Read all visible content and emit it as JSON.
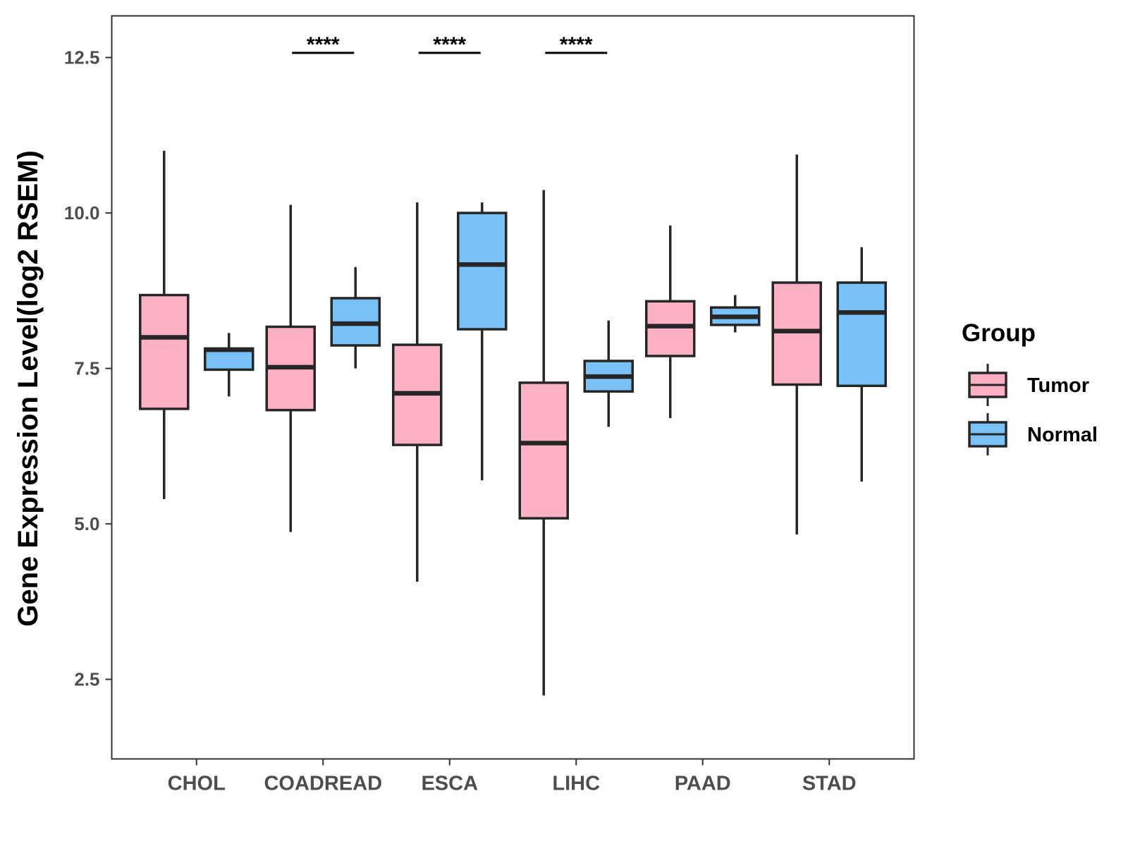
{
  "chart_data": {
    "type": "box",
    "title": "",
    "xlabel": "",
    "ylabel": "Gene Expression Level(log2 RSEM)",
    "ylim": [
      1.22,
      13.17
    ],
    "yticks": [
      2.5,
      5.0,
      7.5,
      10.0,
      12.5
    ],
    "ytick_labels": [
      "2.5",
      "5.0",
      "7.5",
      "10.0",
      "12.5"
    ],
    "grid": false,
    "legend": {
      "title": "Group",
      "position": "right",
      "entries": [
        "Tumor",
        "Normal"
      ]
    },
    "categories": [
      "CHOL",
      "COADREAD",
      "ESCA",
      "LIHC",
      "PAAD",
      "STAD"
    ],
    "series": [
      {
        "name": "Tumor",
        "color": "#FBB1C3",
        "boxes": [
          {
            "min": 5.4,
            "q1": 6.85,
            "median": 8.0,
            "q3": 8.68,
            "max": 11.0
          },
          {
            "min": 4.87,
            "q1": 6.83,
            "median": 7.52,
            "q3": 8.17,
            "max": 10.13
          },
          {
            "min": 4.07,
            "q1": 6.27,
            "median": 7.1,
            "q3": 7.88,
            "max": 10.17
          },
          {
            "min": 2.24,
            "q1": 5.09,
            "median": 6.3,
            "q3": 7.27,
            "max": 10.37
          },
          {
            "min": 6.7,
            "q1": 7.7,
            "median": 8.18,
            "q3": 8.58,
            "max": 9.8
          },
          {
            "min": 4.83,
            "q1": 7.24,
            "median": 8.1,
            "q3": 8.88,
            "max": 10.94
          }
        ]
      },
      {
        "name": "Normal",
        "color": "#78C2F8",
        "boxes": [
          {
            "min": 7.05,
            "q1": 7.48,
            "median": 7.8,
            "q3": 7.82,
            "max": 8.07
          },
          {
            "min": 7.5,
            "q1": 7.87,
            "median": 8.22,
            "q3": 8.63,
            "max": 9.13
          },
          {
            "min": 5.7,
            "q1": 8.13,
            "median": 9.17,
            "q3": 10.0,
            "max": 10.17
          },
          {
            "min": 6.56,
            "q1": 7.13,
            "median": 7.37,
            "q3": 7.62,
            "max": 8.27
          },
          {
            "min": 8.08,
            "q1": 8.2,
            "median": 8.33,
            "q3": 8.48,
            "max": 8.68
          },
          {
            "min": 5.68,
            "q1": 7.22,
            "median": 8.4,
            "q3": 8.88,
            "max": 9.45
          }
        ]
      }
    ],
    "annotations": [
      {
        "category": "COADREAD",
        "text": "****"
      },
      {
        "category": "ESCA",
        "text": "****"
      },
      {
        "category": "LIHC",
        "text": "****"
      }
    ]
  }
}
